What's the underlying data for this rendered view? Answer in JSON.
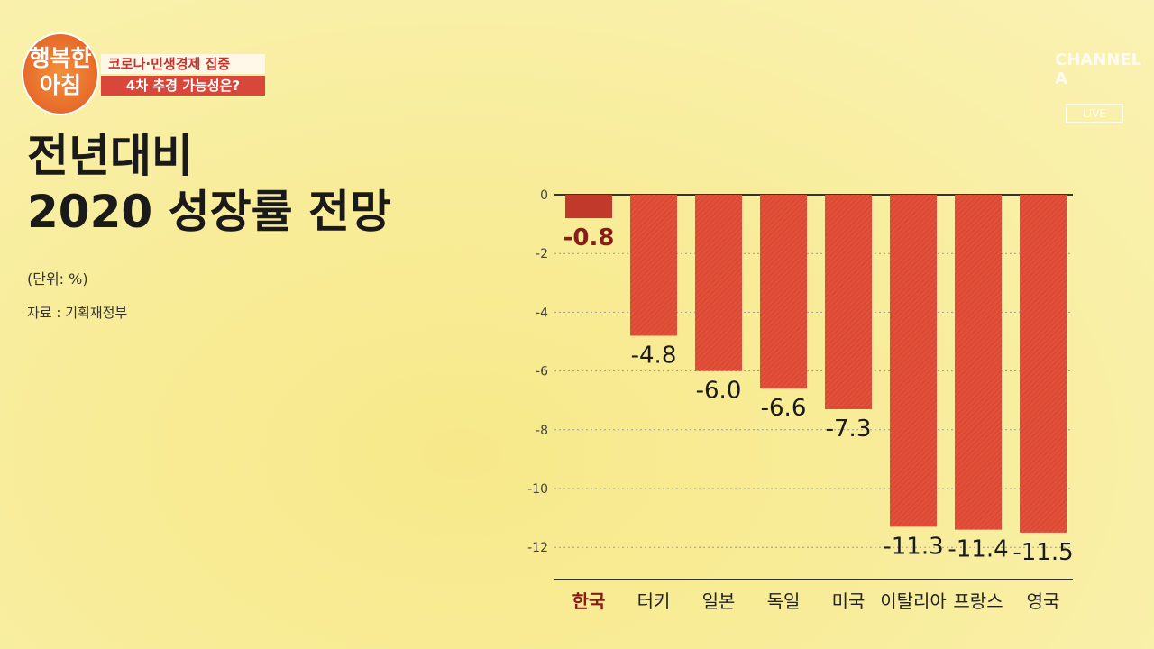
{
  "program": {
    "logo": "행복한 아침",
    "headline_line1": "코로나·민생경제 집중",
    "headline_line2": "4차 추경 가능성은?"
  },
  "channel": {
    "logo": "CHANNEL A",
    "live": "LIVE"
  },
  "colors": {
    "bar": "#e2503a",
    "highlight_bar": "#c0392b",
    "highlight_label": "#8b1a1a"
  },
  "chart_data": {
    "type": "bar",
    "title_line1": "전년대비",
    "title_line2": "2020 성장률 전망",
    "unit": "(단위: %)",
    "source": "자료 : 기획재정부",
    "categories": [
      "한국",
      "터키",
      "일본",
      "독일",
      "미국",
      "이탈리아",
      "프랑스",
      "영국"
    ],
    "values": [
      -0.8,
      -4.8,
      -6.0,
      -6.6,
      -7.3,
      -11.3,
      -11.4,
      -11.5
    ],
    "value_labels": [
      "-0.8",
      "-4.8",
      "-6.0",
      "-6.6",
      "-7.3",
      "-11.3",
      "-11.4",
      "-11.5"
    ],
    "highlight": "한국",
    "ylim": [
      -12,
      0
    ],
    "yticks": [
      "0",
      "-2",
      "-4",
      "-6",
      "-8",
      "-10",
      "-12"
    ],
    "grid": true
  }
}
